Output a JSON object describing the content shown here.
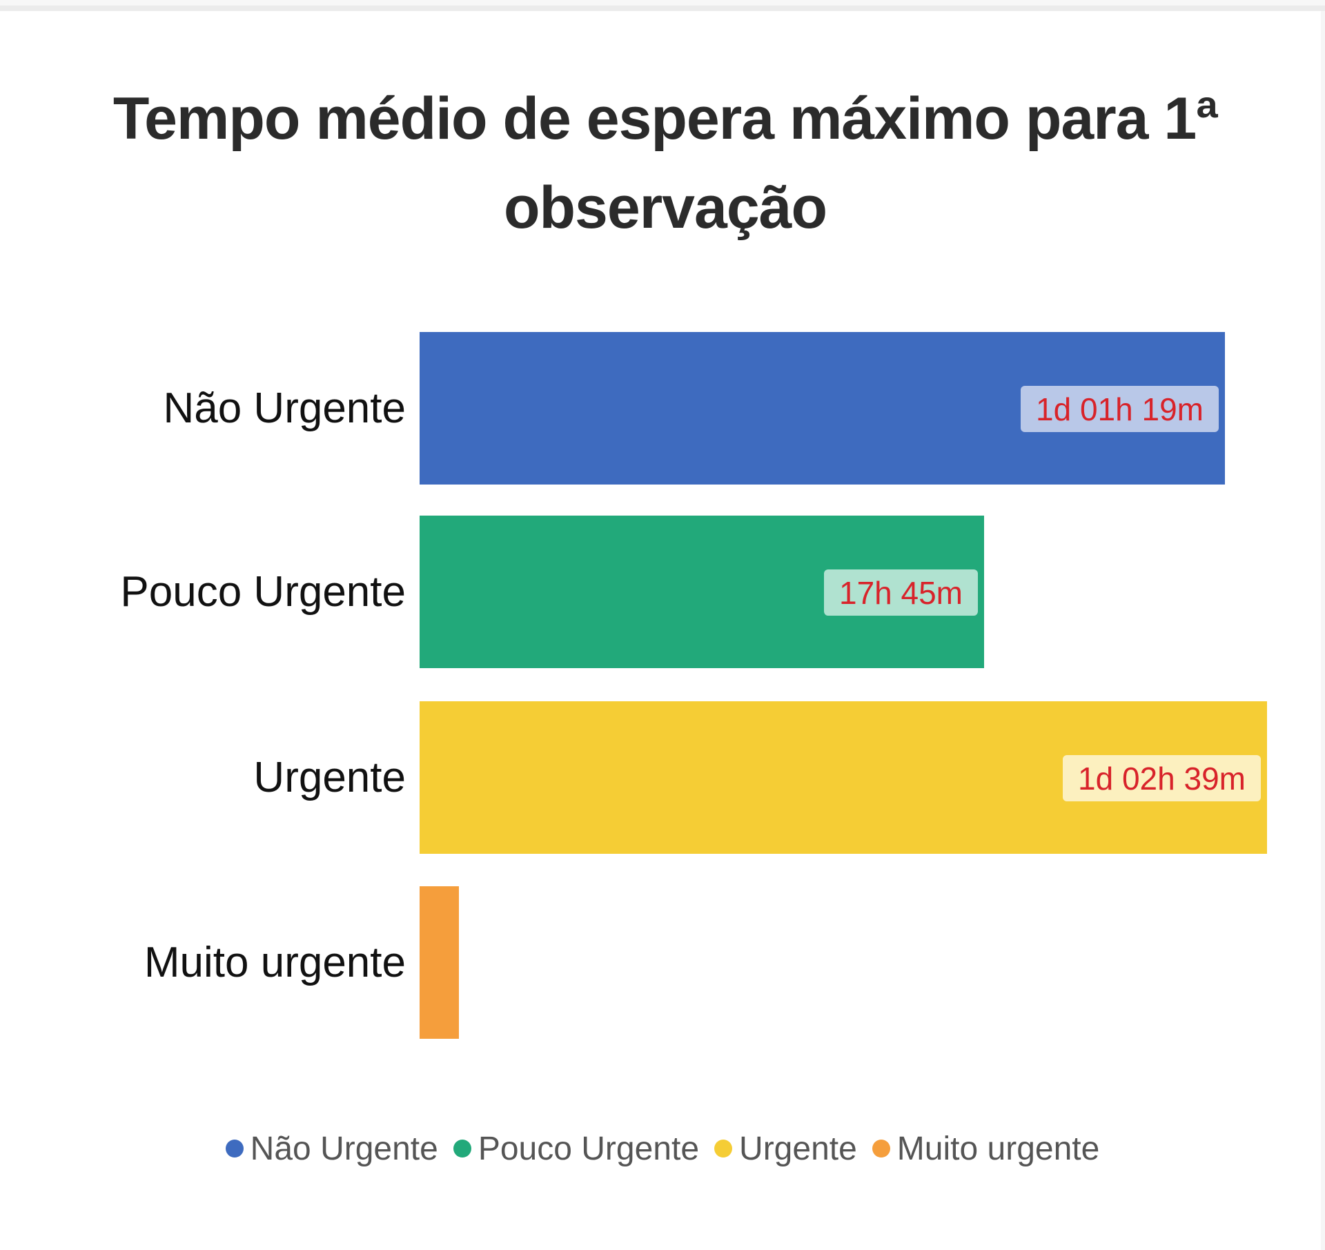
{
  "title": {
    "line1": "Tempo médio de espera máximo para 1ª",
    "line2": "observação"
  },
  "chart_data": {
    "type": "bar",
    "orientation": "horizontal",
    "title": "Tempo médio de espera máximo para 1ª observação",
    "xlabel": "",
    "ylabel": "",
    "unit": "minutes",
    "grid": false,
    "legend_position": "bottom",
    "categories": [
      "Não Urgente",
      "Pouco Urgente",
      "Urgente",
      "Muito urgente"
    ],
    "values": [
      1519,
      1065,
      1599,
      74
    ],
    "data_labels": [
      "1d 01h 19m",
      "17h 45m",
      "1d 02h 39m",
      ""
    ],
    "colors": [
      "#3e6bbf",
      "#22a97a",
      "#f5cd35",
      "#f59e3c"
    ],
    "label_bg_colors": [
      "#b9c8e8",
      "#b0e2d0",
      "#fcf0bf",
      ""
    ],
    "xlim": [
      0,
      1599
    ]
  },
  "rows": [
    {
      "label": "Não Urgente",
      "value_text": "1d 01h 19m",
      "color": "#3e6bbf",
      "label_bg": "#b9c8e8"
    },
    {
      "label": "Pouco Urgente",
      "value_text": "17h 45m",
      "color": "#22a97a",
      "label_bg": "#b0e2d0"
    },
    {
      "label": "Urgente",
      "value_text": "1d 02h 39m",
      "color": "#f5cd35",
      "label_bg": "#fcf0bf"
    },
    {
      "label": "Muito urgente",
      "value_text": "",
      "color": "#f59e3c",
      "label_bg": ""
    }
  ],
  "legend": [
    {
      "label": "Não Urgente",
      "color": "#3e6bbf"
    },
    {
      "label": "Pouco Urgente",
      "color": "#22a97a"
    },
    {
      "label": "Urgente",
      "color": "#f5cd35"
    },
    {
      "label": "Muito urgente",
      "color": "#f59e3c"
    }
  ]
}
